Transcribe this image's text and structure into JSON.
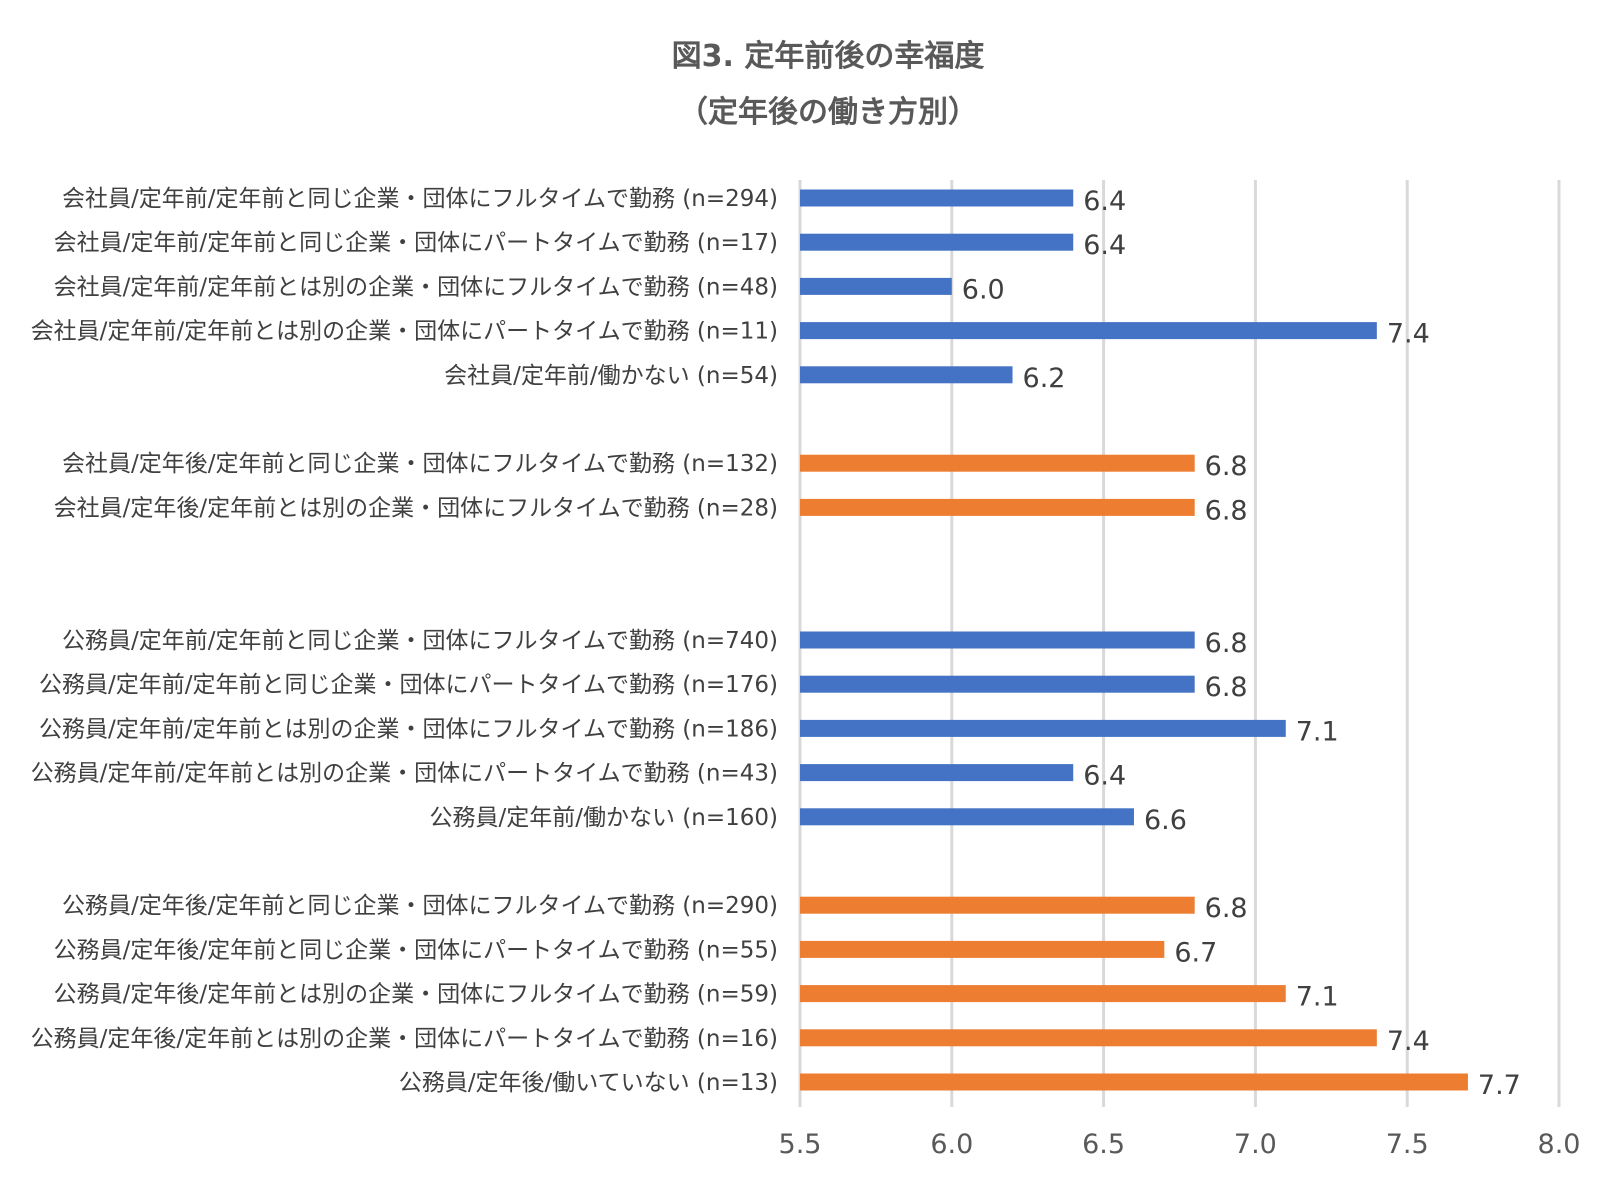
{
  "chart_data": {
    "type": "bar",
    "orientation": "horizontal",
    "title": "図3. 定年前後の幸福度",
    "subtitle": "（定年後の働き方別）",
    "xlim": [
      5.5,
      8.0
    ],
    "xticks": [
      "5.5",
      "6.0",
      "6.5",
      "7.0",
      "7.5",
      "8.0"
    ],
    "grid": true,
    "colors": {
      "before": "#4472C4",
      "after": "#ED7D31"
    },
    "categories": [
      {
        "label": "会社員/定年前/定年前と同じ企業・団体にフルタイムで勤務 (n=294)",
        "value": 6.4,
        "value_label": "6.4",
        "group": "before"
      },
      {
        "label": "会社員/定年前/定年前と同じ企業・団体にパートタイムで勤務 (n=17)",
        "value": 6.4,
        "value_label": "6.4",
        "group": "before"
      },
      {
        "label": "会社員/定年前/定年前とは別の企業・団体にフルタイムで勤務 (n=48)",
        "value": 6.0,
        "value_label": "6.0",
        "group": "before"
      },
      {
        "label": "会社員/定年前/定年前とは別の企業・団体にパートタイムで勤務 (n=11)",
        "value": 7.4,
        "value_label": "7.4",
        "group": "before"
      },
      {
        "label": "会社員/定年前/働かない (n=54)",
        "value": 6.2,
        "value_label": "6.2",
        "group": "before"
      },
      null,
      {
        "label": "会社員/定年後/定年前と同じ企業・団体にフルタイムで勤務 (n=132)",
        "value": 6.8,
        "value_label": "6.8",
        "group": "after"
      },
      {
        "label": "会社員/定年後/定年前とは別の企業・団体にフルタイムで勤務 (n=28)",
        "value": 6.8,
        "value_label": "6.8",
        "group": "after"
      },
      null,
      null,
      {
        "label": "公務員/定年前/定年前と同じ企業・団体にフルタイムで勤務 (n=740)",
        "value": 6.8,
        "value_label": "6.8",
        "group": "before"
      },
      {
        "label": "公務員/定年前/定年前と同じ企業・団体にパートタイムで勤務 (n=176)",
        "value": 6.8,
        "value_label": "6.8",
        "group": "before"
      },
      {
        "label": "公務員/定年前/定年前とは別の企業・団体にフルタイムで勤務 (n=186)",
        "value": 7.1,
        "value_label": "7.1",
        "group": "before"
      },
      {
        "label": "公務員/定年前/定年前とは別の企業・団体にパートタイムで勤務 (n=43)",
        "value": 6.4,
        "value_label": "6.4",
        "group": "before"
      },
      {
        "label": "公務員/定年前/働かない (n=160)",
        "value": 6.6,
        "value_label": "6.6",
        "group": "before"
      },
      null,
      {
        "label": "公務員/定年後/定年前と同じ企業・団体にフルタイムで勤務 (n=290)",
        "value": 6.8,
        "value_label": "6.8",
        "group": "after"
      },
      {
        "label": "公務員/定年後/定年前と同じ企業・団体にパートタイムで勤務 (n=55)",
        "value": 6.7,
        "value_label": "6.7",
        "group": "after"
      },
      {
        "label": "公務員/定年後/定年前とは別の企業・団体にフルタイムで勤務 (n=59)",
        "value": 7.1,
        "value_label": "7.1",
        "group": "after"
      },
      {
        "label": "公務員/定年後/定年前とは別の企業・団体にパートタイムで勤務 (n=16)",
        "value": 7.4,
        "value_label": "7.4",
        "group": "after"
      },
      {
        "label": "公務員/定年後/働いていない (n=13)",
        "value": 7.7,
        "value_label": "7.7",
        "group": "after"
      }
    ]
  }
}
